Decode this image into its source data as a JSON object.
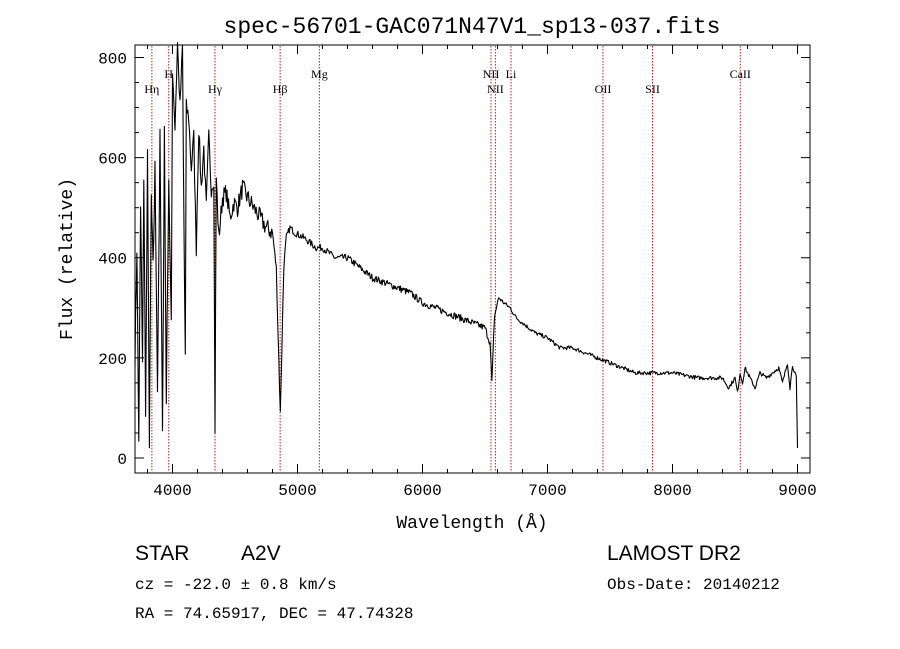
{
  "chart_data": {
    "type": "line",
    "title": "spec-56701-GAC071N47V1_sp13-037.fits",
    "xlabel": "Wavelength (Å)",
    "ylabel": "Flux (relative)",
    "xlim": [
      3700,
      9100
    ],
    "ylim": [
      -30,
      825
    ],
    "x_ticks": [
      4000,
      5000,
      6000,
      7000,
      8000,
      9000
    ],
    "x_tick_labels": [
      "4000",
      "5000",
      "6000",
      "7000",
      "8000",
      "9000"
    ],
    "y_ticks": [
      0,
      200,
      400,
      600,
      800
    ],
    "y_tick_labels": [
      "0",
      "200",
      "400",
      "600",
      "800"
    ],
    "grid": false,
    "series": [
      {
        "name": "flux",
        "x": [
          3700,
          3715,
          3730,
          3745,
          3760,
          3770,
          3785,
          3800,
          3815,
          3830,
          3845,
          3860,
          3880,
          3900,
          3920,
          3935,
          3950,
          3970,
          3990,
          4000,
          4020,
          4040,
          4060,
          4080,
          4090,
          4102,
          4110,
          4130,
          4150,
          4170,
          4190,
          4210,
          4230,
          4250,
          4270,
          4290,
          4310,
          4330,
          4340,
          4350,
          4370,
          4400,
          4430,
          4460,
          4490,
          4520,
          4560,
          4600,
          4650,
          4700,
          4750,
          4800,
          4830,
          4850,
          4862,
          4875,
          4890,
          4910,
          4940,
          4980,
          5050,
          5100,
          5150,
          5200,
          5250,
          5300,
          5400,
          5500,
          5600,
          5700,
          5800,
          5900,
          6000,
          6100,
          6200,
          6300,
          6400,
          6500,
          6540,
          6555,
          6563,
          6575,
          6590,
          6610,
          6650,
          6700,
          6750,
          6800,
          6900,
          7000,
          7100,
          7200,
          7300,
          7400,
          7500,
          7600,
          7700,
          7800,
          7900,
          8000,
          8100,
          8200,
          8300,
          8400,
          8450,
          8500,
          8520,
          8540,
          8560,
          8580,
          8620,
          8660,
          8700,
          8750,
          8800,
          8850,
          8880,
          8900,
          8920,
          8940,
          8960,
          8980,
          8990,
          9000
        ],
        "values": [
          200,
          420,
          40,
          500,
          180,
          560,
          100,
          600,
          20,
          520,
          380,
          580,
          140,
          640,
          40,
          660,
          120,
          560,
          260,
          780,
          660,
          830,
          700,
          820,
          500,
          200,
          700,
          680,
          580,
          640,
          420,
          660,
          540,
          620,
          500,
          640,
          540,
          560,
          60,
          560,
          440,
          520,
          530,
          480,
          510,
          500,
          540,
          520,
          500,
          480,
          460,
          450,
          380,
          200,
          90,
          220,
          380,
          440,
          460,
          450,
          440,
          430,
          420,
          420,
          410,
          400,
          400,
          380,
          360,
          350,
          340,
          330,
          310,
          300,
          290,
          280,
          270,
          260,
          230,
          150,
          200,
          280,
          300,
          320,
          310,
          300,
          280,
          270,
          250,
          240,
          220,
          220,
          210,
          200,
          190,
          180,
          170,
          170,
          170,
          170,
          165,
          160,
          160,
          160,
          140,
          160,
          130,
          170,
          150,
          180,
          160,
          140,
          170,
          160,
          170,
          180,
          150,
          170,
          190,
          140,
          185,
          170,
          160,
          20
        ]
      }
    ],
    "annotations": [
      {
        "label": "Hη",
        "x": 3835
      },
      {
        "label": "H",
        "x": 3970
      },
      {
        "label": "Hγ",
        "x": 4340
      },
      {
        "label": "Hβ",
        "x": 4861
      },
      {
        "label": "Mg",
        "x": 5175
      },
      {
        "label": "NII",
        "x": 6548
      },
      {
        "label": "NII",
        "x": 6583
      },
      {
        "label": "Li",
        "x": 6708
      },
      {
        "label": "OII",
        "x": 7444
      },
      {
        "label": "SII",
        "x": 7840
      },
      {
        "label": "CaII",
        "x": 8542
      }
    ]
  },
  "info": {
    "obj_class": "STAR",
    "subclass": "A2V",
    "survey": "LAMOST DR2",
    "cz": "cz = -22.0 ± 0.8 km/s",
    "obs_date": "Obs-Date: 20140212",
    "coords": "RA =  74.65917, DEC =  47.74328"
  }
}
